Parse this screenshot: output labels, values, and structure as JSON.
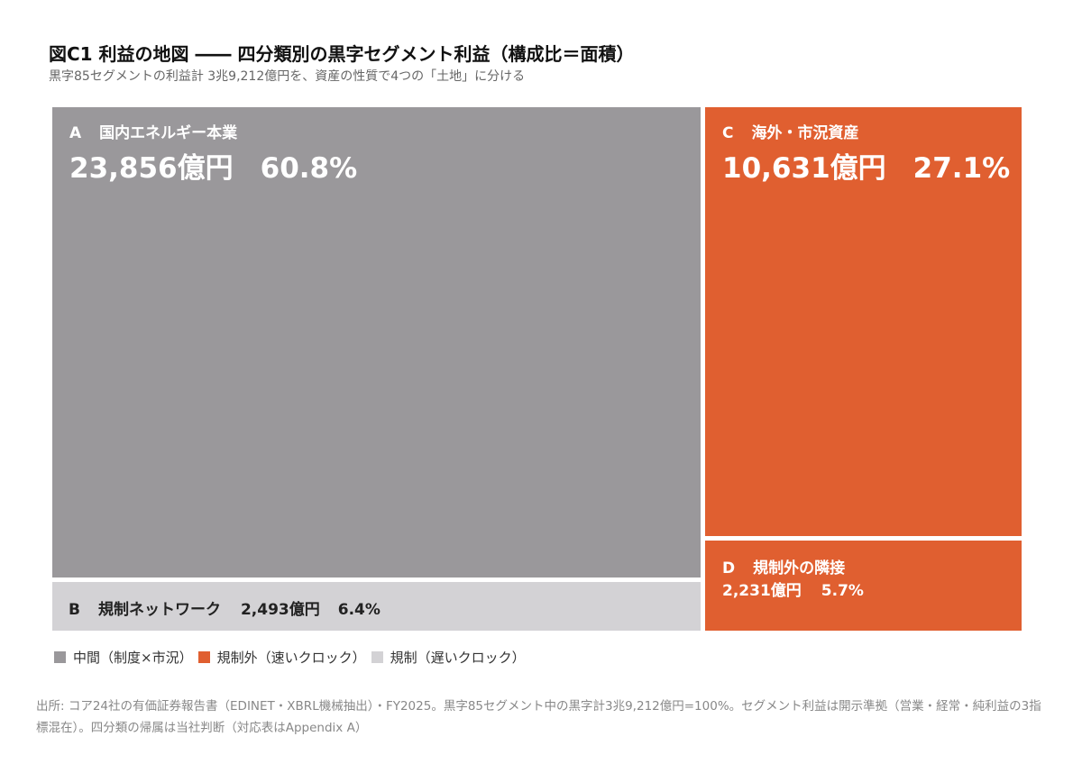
{
  "title": "図C1 利益の地図 ―― 四分類別の黒字セグメント利益（構成比＝面積）",
  "subtitle": "黒字85セグメントの利益計 3兆9,212億円を、資産の性質で4つの「土地」に分ける",
  "chart_data": {
    "type": "treemap",
    "unit": "億円",
    "total": 39212,
    "categories": [
      {
        "key": "A",
        "label": "国内エネルギー本業",
        "value": 23856,
        "value_text": "23,856億円",
        "share_text": "60.8%",
        "share": 60.8,
        "group": "中間（制度×市況）",
        "color": "#9a989b",
        "text_color": "#ffffff"
      },
      {
        "key": "B",
        "label": "規制ネットワーク",
        "value": 2493,
        "value_text": "2,493億円",
        "share_text": "6.4%",
        "share": 6.4,
        "group": "規制（遅いクロック）",
        "color": "#d3d2d5",
        "text_color": "#222222"
      },
      {
        "key": "C",
        "label": "海外・市況資産",
        "value": 10631,
        "value_text": "10,631億円",
        "share_text": "27.1%",
        "share": 27.1,
        "group": "規制外（速いクロック）",
        "color": "#e05f30",
        "text_color": "#ffffff"
      },
      {
        "key": "D",
        "label": "規制外の隣接",
        "value": 2231,
        "value_text": "2,231億円",
        "share_text": "5.7%",
        "share": 5.7,
        "group": "規制外（速いクロック）",
        "color": "#e05f30",
        "text_color": "#ffffff"
      }
    ],
    "legend": [
      {
        "label": "中間（制度×市況）",
        "color": "#9a989b"
      },
      {
        "label": "規制外（速いクロック）",
        "color": "#e05f30"
      },
      {
        "label": "規制（遅いクロック）",
        "color": "#d3d2d5"
      }
    ]
  },
  "source": "出所: コア24社の有価証券報告書（EDINET・XBRL機械抽出）・FY2025。黒字85セグメント中の黒字計3兆9,212億円=100%。セグメント利益は開示準拠（営業・経常・純利益の3指標混在）。四分類の帰属は当社判断（対応表はAppendix A）"
}
